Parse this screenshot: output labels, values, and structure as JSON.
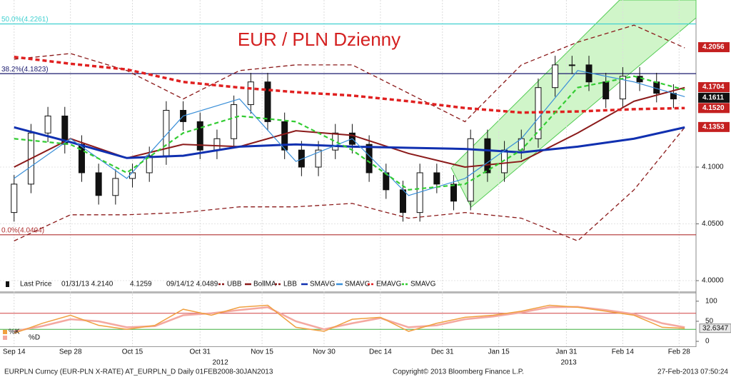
{
  "chart_data": [
    {
      "type": "candlestick",
      "title": "EUR / PLN Dzienny",
      "ylim": [
        3.9906,
        4.244
      ],
      "xlim": [
        -2.5,
        121
      ],
      "yticks": [
        {
          "value": 4.0,
          "label": "4.0000"
        },
        {
          "value": 4.05,
          "label": "4.0500"
        },
        {
          "value": 4.1,
          "label": "4.1000"
        }
      ],
      "candles": {
        "name": "Last Price",
        "up_color": "#ffffff",
        "down_color": "#111111",
        "x": [
          0,
          3,
          6,
          9,
          12,
          15,
          18,
          21,
          24,
          27,
          30,
          33,
          36,
          39,
          42,
          45,
          48,
          51,
          54,
          57,
          60,
          63,
          66,
          69,
          72,
          75,
          78,
          81,
          84,
          87,
          90,
          93,
          96,
          99,
          102,
          105,
          108,
          111,
          114,
          117
        ],
        "open": [
          4.06,
          4.085,
          4.13,
          4.145,
          4.12,
          4.095,
          4.075,
          4.09,
          4.095,
          4.11,
          4.15,
          4.14,
          4.115,
          4.125,
          4.155,
          4.175,
          4.14,
          4.115,
          4.1,
          4.115,
          4.13,
          4.12,
          4.095,
          4.08,
          4.06,
          4.095,
          4.085,
          4.07,
          4.125,
          4.095,
          4.115,
          4.125,
          4.17,
          4.19,
          4.19,
          4.175,
          4.16,
          4.18,
          4.175,
          4.165
        ],
        "high": [
          4.093,
          4.138,
          4.153,
          4.153,
          4.128,
          4.103,
          4.098,
          4.103,
          4.118,
          4.158,
          4.158,
          4.148,
          4.133,
          4.163,
          4.183,
          4.183,
          4.148,
          4.123,
          4.123,
          4.138,
          4.138,
          4.128,
          4.103,
          4.088,
          4.103,
          4.103,
          4.093,
          4.133,
          4.133,
          4.123,
          4.133,
          4.178,
          4.198,
          4.198,
          4.198,
          4.183,
          4.188,
          4.188,
          4.183,
          4.173
        ],
        "low": [
          4.052,
          4.077,
          4.122,
          4.112,
          4.087,
          4.067,
          4.067,
          4.082,
          4.087,
          4.102,
          4.132,
          4.107,
          4.107,
          4.117,
          4.147,
          4.132,
          4.107,
          4.092,
          4.092,
          4.107,
          4.112,
          4.087,
          4.072,
          4.052,
          4.052,
          4.077,
          4.062,
          4.062,
          4.087,
          4.087,
          4.107,
          4.117,
          4.162,
          4.182,
          4.167,
          4.152,
          4.152,
          4.167,
          4.157,
          4.152
        ],
        "close": [
          4.085,
          4.13,
          4.145,
          4.12,
          4.095,
          4.075,
          4.09,
          4.095,
          4.11,
          4.15,
          4.14,
          4.115,
          4.125,
          4.155,
          4.175,
          4.14,
          4.115,
          4.1,
          4.115,
          4.13,
          4.12,
          4.095,
          4.08,
          4.06,
          4.095,
          4.085,
          4.07,
          4.125,
          4.095,
          4.115,
          4.125,
          4.17,
          4.19,
          4.19,
          4.175,
          4.16,
          4.18,
          4.175,
          4.165,
          4.16
        ]
      },
      "line_x": [
        0,
        10,
        20,
        30,
        40,
        50,
        60,
        70,
        80,
        90,
        100,
        110,
        119
      ],
      "series": [
        {
          "name": "UBB",
          "color": "#8b1a1a",
          "width": 1.3,
          "dash": true,
          "values": [
            4.195,
            4.2,
            4.185,
            4.16,
            4.185,
            4.19,
            4.19,
            4.165,
            4.14,
            4.19,
            4.21,
            4.225,
            4.205
          ]
        },
        {
          "name": "BollMA",
          "color": "#8b1a1a",
          "width": 2,
          "dash": false,
          "values": [
            4.1,
            4.125,
            4.108,
            4.12,
            4.118,
            4.132,
            4.128,
            4.112,
            4.1,
            4.105,
            4.13,
            4.158,
            4.17
          ]
        },
        {
          "name": "LBB",
          "color": "#8b1a1a",
          "width": 1.3,
          "dash": true,
          "values": [
            4.035,
            4.058,
            4.058,
            4.06,
            4.065,
            4.065,
            4.068,
            4.055,
            4.06,
            4.055,
            4.035,
            4.08,
            4.135
          ]
        },
        {
          "name": "SMAVG",
          "color": "#1030b0",
          "width": 3,
          "dash": false,
          "values": [
            4.135,
            4.122,
            4.108,
            4.11,
            4.118,
            4.12,
            4.118,
            4.117,
            4.116,
            4.113,
            4.118,
            4.125,
            4.135
          ]
        },
        {
          "name": "SMAVG",
          "color": "#3a8fd8",
          "width": 1.2,
          "dash": false,
          "values": [
            4.09,
            4.125,
            4.09,
            4.145,
            4.16,
            4.105,
            4.125,
            4.075,
            4.09,
            4.125,
            4.185,
            4.175,
            4.162
          ]
        },
        {
          "name": "EMAVG",
          "color": "#e02020",
          "width": 3.5,
          "dash": true,
          "values": [
            4.197,
            4.191,
            4.186,
            4.175,
            4.17,
            4.166,
            4.163,
            4.158,
            4.152,
            4.148,
            4.149,
            4.151,
            4.152
          ]
        },
        {
          "name": "SMAVG",
          "color": "#33cc33",
          "width": 2.2,
          "dash": true,
          "values": [
            4.125,
            4.12,
            4.095,
            4.13,
            4.145,
            4.14,
            4.115,
            4.08,
            4.085,
            4.115,
            4.17,
            4.18,
            4.168
          ]
        }
      ],
      "legend_notes": [
        "01/31/13 4.2140",
        "4.1259",
        "09/14/12 4.0489"
      ],
      "levels": [
        {
          "label": "50.0%(4.2261)",
          "value": 4.2261,
          "color": "#40d0d0"
        },
        {
          "label": "38.2%(4.1823)",
          "value": 4.1823,
          "color": "#1a1a6e"
        },
        {
          "label": "0.0%(4.0404)",
          "value": 4.0404,
          "color": "#b03030"
        }
      ],
      "price_tags": [
        {
          "value": 4.2056,
          "label": "4.2056",
          "color": "#c42020"
        },
        {
          "value": 4.1704,
          "label": "4.1704",
          "color": "#c42020"
        },
        {
          "value": 4.1611,
          "label": "4.1611",
          "color": "#111111"
        },
        {
          "value": 4.152,
          "label": "4.1520",
          "color": "#c42020"
        },
        {
          "value": 4.1353,
          "label": "4.1353",
          "color": "#c42020"
        }
      ]
    },
    {
      "type": "line",
      "ylim": [
        -12.3,
        119.3
      ],
      "xlim": [
        -2.5,
        121
      ],
      "yticks": [
        0,
        50,
        100
      ],
      "bands": [
        {
          "value": 70,
          "color": "#d04040"
        },
        {
          "value": 30,
          "color": "#40b040"
        }
      ],
      "xticks": [
        {
          "value": 0,
          "label": "Sep 14"
        },
        {
          "value": 10,
          "label": "Sep 28"
        },
        {
          "value": 21,
          "label": "Oct 15"
        },
        {
          "value": 33,
          "label": "Oct 31"
        },
        {
          "value": 44,
          "label": "Nov 15"
        },
        {
          "value": 55,
          "label": "Nov 30"
        },
        {
          "value": 65,
          "label": "Dec 14"
        },
        {
          "value": 76,
          "label": "Dec 31"
        },
        {
          "value": 86,
          "label": "Jan 15"
        },
        {
          "value": 98,
          "label": "Jan 31"
        },
        {
          "value": 108,
          "label": "Feb 14"
        },
        {
          "value": 118,
          "label": "Feb 28"
        }
      ],
      "year_ticks": [
        {
          "value": 36.6,
          "label": "2012"
        },
        {
          "value": 98.4,
          "label": "2013"
        }
      ],
      "x": [
        0,
        5,
        10,
        15,
        20,
        25,
        30,
        35,
        40,
        45,
        50,
        55,
        60,
        65,
        70,
        75,
        80,
        85,
        90,
        95,
        100,
        105,
        110,
        115,
        119
      ],
      "series": [
        {
          "name": "%K",
          "color": "#f0a040",
          "values": [
            20,
            45,
            65,
            40,
            30,
            40,
            80,
            65,
            85,
            90,
            35,
            25,
            55,
            60,
            25,
            45,
            60,
            65,
            75,
            90,
            85,
            75,
            65,
            35,
            32.6347
          ]
        },
        {
          "name": "%D",
          "color": "#f4a8a0",
          "values": [
            25,
            38,
            55,
            50,
            35,
            38,
            65,
            70,
            78,
            85,
            50,
            30,
            45,
            58,
            35,
            40,
            55,
            62,
            72,
            85,
            86,
            78,
            68,
            45,
            35
          ]
        }
      ],
      "last_tag": {
        "value": 32.6347,
        "label": "32.6347"
      }
    }
  ],
  "footer": {
    "left": "EURPLN Curncy (EUR-PLN X-RATE) AT_EURPLN_D  Daily 01FEB2008-30JAN2013",
    "center": "Copyright© 2013 Bloomberg Finance L.P.",
    "right": "27-Feb-2013 07:50:24"
  }
}
